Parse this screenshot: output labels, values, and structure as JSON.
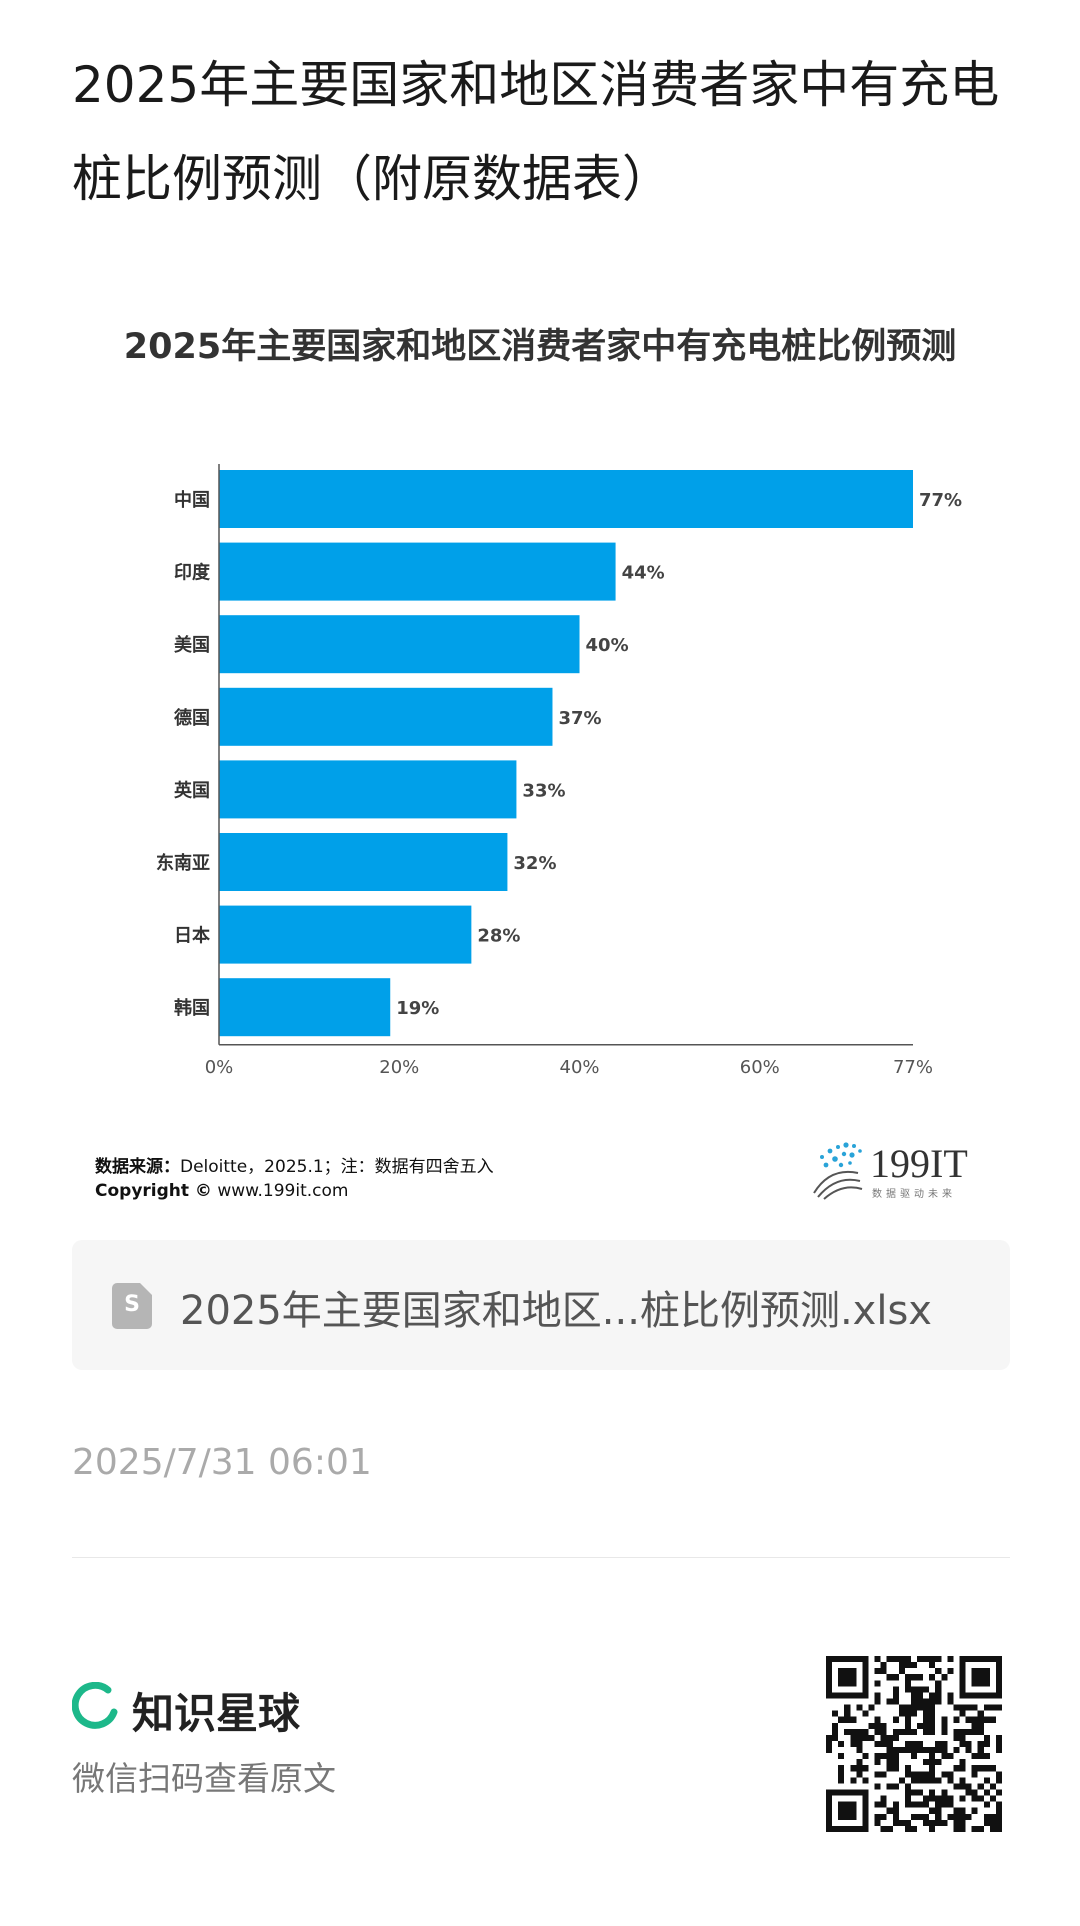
{
  "page": {
    "title": "2025年主要国家和地区消费者家中有充电桩比例预测（附原数据表）"
  },
  "chart_data": {
    "type": "bar",
    "orientation": "horizontal",
    "title": "2025年主要国家和地区消费者家中有充电桩比例预测",
    "categories": [
      "中国",
      "印度",
      "美国",
      "德国",
      "英国",
      "东南亚",
      "日本",
      "韩国"
    ],
    "values": [
      77,
      44,
      40,
      37,
      33,
      32,
      28,
      19
    ],
    "value_labels": [
      "77%",
      "44%",
      "40%",
      "37%",
      "33%",
      "32%",
      "28%",
      "19%"
    ],
    "xlim": [
      0,
      77
    ],
    "x_ticks": [
      0,
      20,
      40,
      60,
      77
    ],
    "x_tick_labels": [
      "0%",
      "20%",
      "40%",
      "60%",
      "77%"
    ],
    "bar_color": "#00A0E9",
    "grid": false
  },
  "footnote": {
    "source_label": "数据来源：",
    "source_text": "Deloitte，2025.1；注：数据有四舍五入",
    "copyright_label": "Copyright ©",
    "copyright_text": " www.199it.com"
  },
  "watermark": {
    "brand": "199IT",
    "tagline": "数据驱动未来"
  },
  "attachment": {
    "icon": "spreadsheet-file-icon",
    "icon_letter": "S",
    "filename": "2025年主要国家和地区...桩比例预测.xlsx"
  },
  "timestamp": "2025/7/31 06:01",
  "footer": {
    "brand_icon": "zsxq-ring-icon",
    "brand_name": "知识星球",
    "subtitle": "微信扫码查看原文",
    "brand_color": "#1DB88A"
  },
  "qr_icon": "qr-code"
}
